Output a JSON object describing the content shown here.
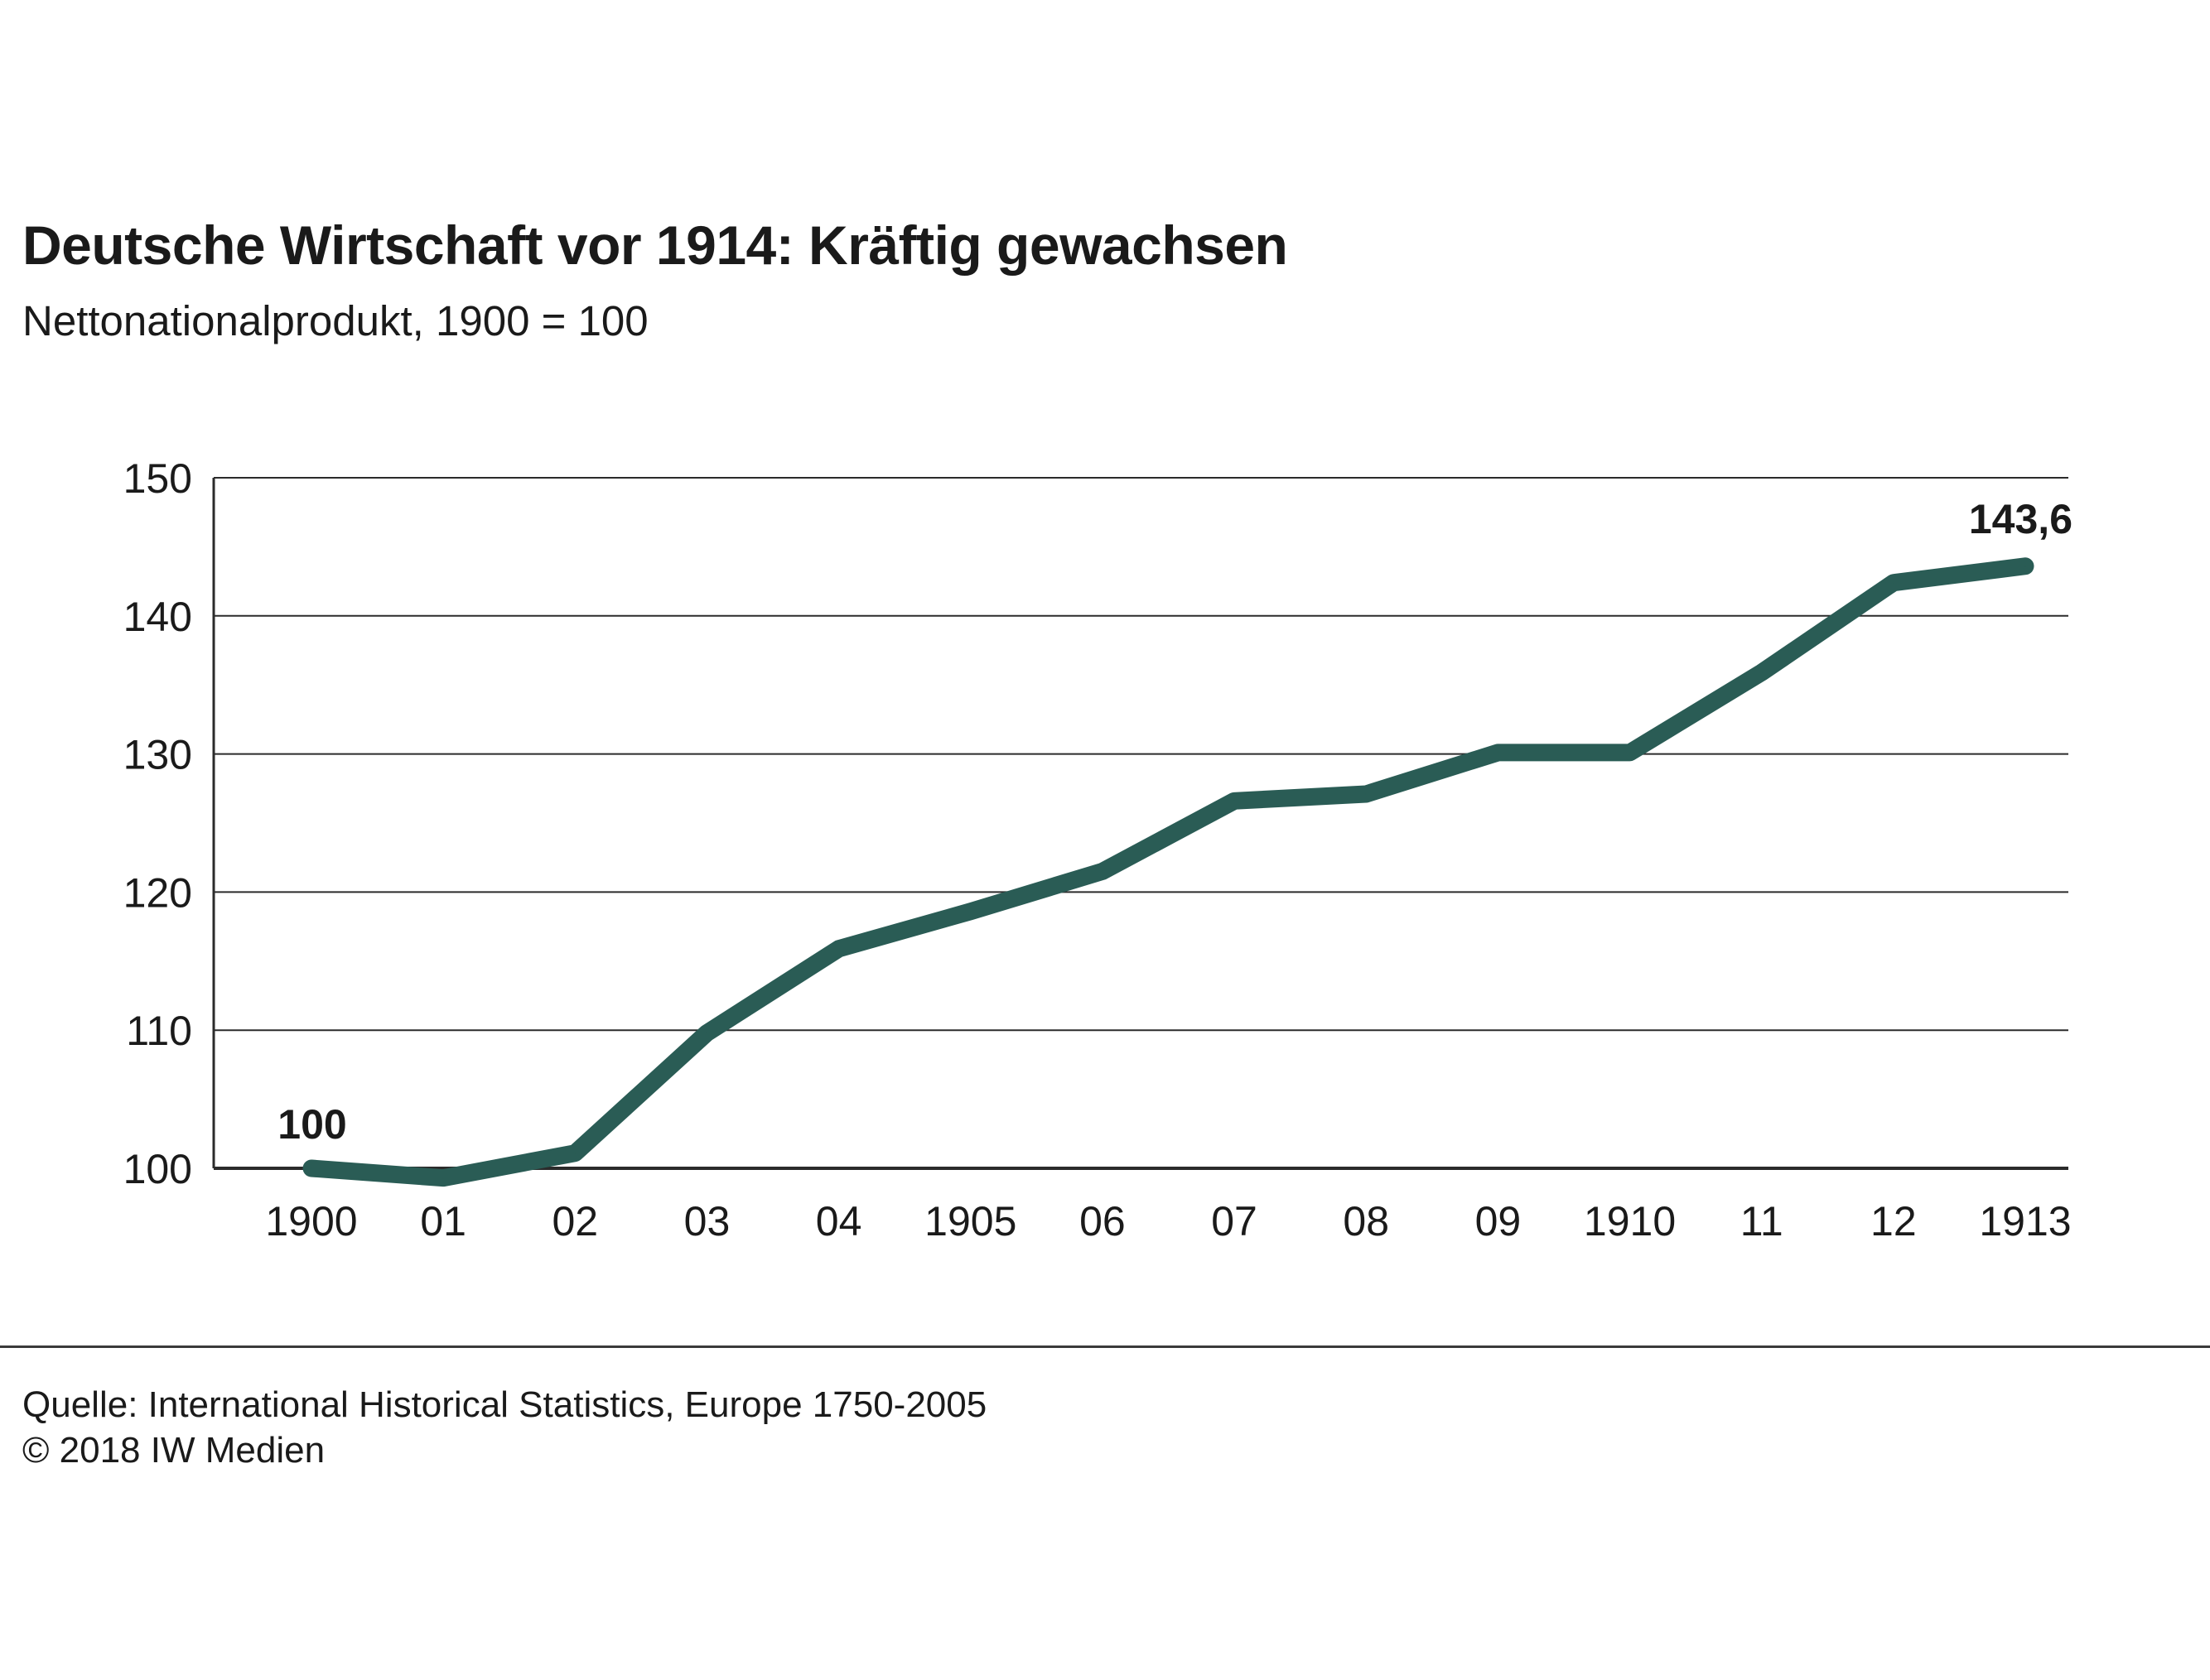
{
  "header": {
    "title": "Deutsche Wirtschaft vor 1914: Kräftig gewachsen",
    "subtitle": "Nettonationalprodukt, 1900 = 100"
  },
  "footer": {
    "source": "Quelle: International Historical Statistics, Europe 1750-2005",
    "copyright": "© 2018 IW Medien"
  },
  "colors": {
    "line": "#2a5c55",
    "grid": "#2b2b2b",
    "text": "#1a1a1a"
  },
  "chart_data": {
    "type": "line",
    "x": [
      1900,
      1901,
      1902,
      1903,
      1904,
      1905,
      1906,
      1907,
      1908,
      1909,
      1910,
      1911,
      1912,
      1913
    ],
    "categories": [
      "1900",
      "01",
      "02",
      "03",
      "04",
      "1905",
      "06",
      "07",
      "08",
      "09",
      "1910",
      "11",
      "12",
      "1913"
    ],
    "series": [
      {
        "values": [
          100,
          99.3,
          101.1,
          109.8,
          115.9,
          118.6,
          121.5,
          126.6,
          127.1,
          130.1,
          130.1,
          135.9,
          142.4,
          143.6
        ]
      }
    ],
    "yticks": [
      100,
      110,
      120,
      130,
      140,
      150
    ],
    "ylim": [
      100,
      150
    ],
    "grid": true,
    "annotations": [
      {
        "index": 0,
        "label": "100"
      },
      {
        "index": 13,
        "label": "143,6"
      }
    ]
  }
}
